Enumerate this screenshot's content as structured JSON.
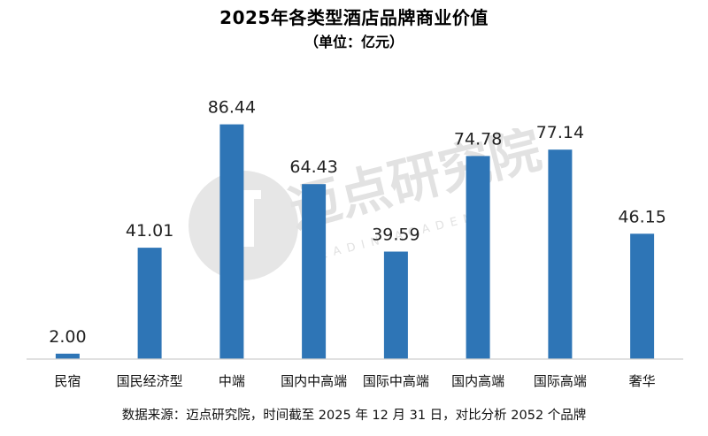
{
  "chart_data": {
    "type": "bar",
    "title": "2025年各类型酒店品牌商业价值",
    "subtitle": "（单位：亿元）",
    "categories": [
      "民宿",
      "国民经济型",
      "中端",
      "国内中高端",
      "国际中高端",
      "国内高端",
      "国际高端",
      "奢华"
    ],
    "values": [
      2.0,
      41.01,
      86.44,
      64.43,
      39.59,
      74.78,
      77.14,
      46.15
    ],
    "value_labels": [
      "2.00",
      "41.01",
      "86.44",
      "64.43",
      "39.59",
      "74.78",
      "77.14",
      "46.15"
    ],
    "ylim": [
      0,
      100
    ],
    "grid": false,
    "legend": "none",
    "bar_color": "#2E75B6"
  },
  "watermark": {
    "text": "迈点研究院",
    "subtext": "MEADIN ACADEMY"
  },
  "footer": {
    "text": "数据来源：迈点研究院，时间截至 2025 年 12 月 31 日，对比分析 2052 个品牌"
  }
}
